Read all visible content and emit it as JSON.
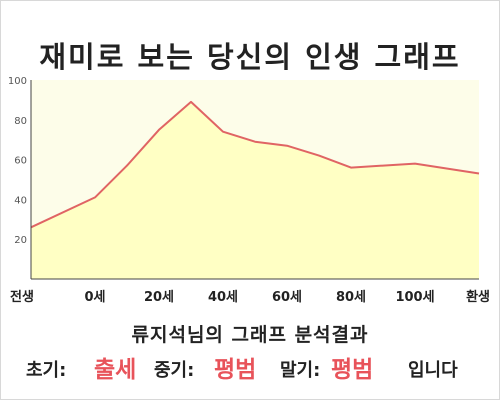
{
  "title": "재미로 보는 당신의 인생 그래프",
  "chart_data": {
    "type": "area",
    "x_tick_labels": [
      "전생",
      "0세",
      "20세",
      "40세",
      "60세",
      "80세",
      "100세",
      "환생"
    ],
    "y_ticks": [
      20,
      40,
      60,
      80,
      100
    ],
    "ylim": [
      0,
      100
    ],
    "grid": false,
    "colors": {
      "line": "#e06464",
      "fill": "#ffffc4"
    },
    "series": [
      {
        "x": [
          -20,
          0,
          10,
          20,
          30,
          40,
          50,
          60,
          70,
          80,
          90,
          100,
          120
        ],
        "values": [
          26,
          41,
          57,
          75,
          89,
          74,
          69,
          67,
          62,
          56,
          57,
          58,
          53
        ]
      }
    ]
  },
  "result": {
    "heading": "류지석님의 그래프 분석결과",
    "early_label": "초기:",
    "early_value": "출세",
    "middle_label": "중기:",
    "middle_value": "평범",
    "late_label": "말기:",
    "late_value": "평범",
    "suffix": "입니다"
  }
}
